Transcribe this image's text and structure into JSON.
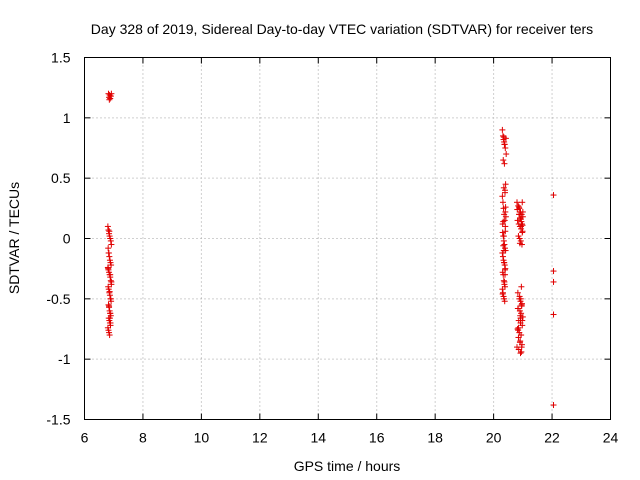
{
  "chart_data": {
    "type": "scatter",
    "title": "Day 328 of 2019, Sidereal Day-to-day VTEC variation (SDTVAR) for receiver ters",
    "xlabel": "GPS time / hours",
    "ylabel": "SDTVAR / TECUs",
    "xlim": [
      6,
      24
    ],
    "ylim": [
      -1.5,
      1.5
    ],
    "xticks": [
      6,
      8,
      10,
      12,
      14,
      16,
      18,
      20,
      22,
      24
    ],
    "yticks": [
      -1.5,
      -1,
      -0.5,
      0,
      0.5,
      1,
      1.5
    ],
    "xtick_labels": [
      "6",
      "8",
      "10",
      "12",
      "14",
      "16",
      "18",
      "20",
      "22",
      "24"
    ],
    "ytick_labels": [
      "-1.5",
      "-1",
      "-0.5",
      "0",
      "0.5",
      "1",
      "1.5"
    ],
    "grid": true,
    "marker": "+",
    "color": "#e00000",
    "series": [
      {
        "name": "ters",
        "x": [
          6.82,
          6.86,
          6.9,
          6.84,
          6.88,
          6.92,
          6.85,
          6.89,
          6.8,
          6.82,
          6.84,
          6.86,
          6.88,
          6.9,
          6.92,
          6.81,
          6.83,
          6.85,
          6.87,
          6.89,
          6.91,
          6.8,
          6.82,
          6.84,
          6.86,
          6.88,
          6.9,
          6.92,
          6.81,
          6.83,
          6.85,
          6.87,
          6.89,
          6.91,
          6.82,
          6.84,
          6.86,
          6.88,
          6.9,
          6.83,
          6.85,
          6.87,
          6.89,
          6.8,
          6.82,
          6.84,
          6.86,
          6.88,
          6.9,
          6.92,
          6.81,
          6.83,
          6.85,
          6.87,
          6.89,
          6.84,
          6.86,
          6.88,
          20.3,
          20.32,
          20.34,
          20.36,
          20.38,
          20.4,
          20.42,
          20.33,
          20.37,
          20.41,
          20.35,
          20.39,
          20.3,
          20.32,
          20.34,
          20.36,
          20.38,
          20.4,
          20.31,
          20.33,
          20.35,
          20.37,
          20.39,
          20.41,
          20.3,
          20.32,
          20.34,
          20.36,
          20.38,
          20.4,
          20.31,
          20.33,
          20.35,
          20.37,
          20.39,
          20.3,
          20.32,
          20.34,
          20.36,
          20.38,
          20.4,
          20.42,
          20.31,
          20.33,
          20.35,
          20.37,
          20.39,
          20.41,
          20.33,
          20.35,
          20.37,
          20.39,
          20.31,
          20.35,
          20.39,
          20.43,
          20.36,
          20.4,
          20.8,
          20.84,
          20.88,
          20.92,
          20.96,
          21.0,
          20.82,
          20.86,
          20.9,
          20.94,
          20.98,
          20.85,
          20.89,
          20.93,
          20.97,
          20.81,
          20.87,
          20.91,
          20.95,
          20.99,
          20.83,
          20.88,
          20.92,
          20.96,
          20.84,
          20.9,
          20.94,
          21.0,
          20.86,
          20.92,
          20.98,
          20.82,
          20.88,
          20.94,
          20.85,
          20.91,
          20.97,
          20.8,
          20.86,
          20.92,
          20.98,
          20.83,
          20.89,
          20.95,
          20.84,
          20.9,
          20.96,
          20.87,
          20.93,
          20.99,
          20.85,
          20.91,
          20.97,
          20.88,
          20.94,
          20.9,
          20.96,
          20.92,
          20.98,
          20.94,
          21.0,
          20.93,
          20.97,
          20.95,
          22.05,
          22.05,
          22.05,
          22.05,
          22.05
        ],
        "y": [
          1.2,
          1.19,
          1.18,
          1.17,
          1.16,
          1.2,
          1.15,
          1.18,
          0.1,
          0.07,
          0.04,
          0.02,
          0.0,
          -0.02,
          -0.05,
          -0.08,
          -0.12,
          -0.15,
          -0.18,
          -0.2,
          -0.22,
          -0.24,
          -0.26,
          -0.28,
          -0.3,
          -0.32,
          -0.35,
          -0.38,
          -0.4,
          -0.42,
          -0.45,
          -0.47,
          -0.5,
          -0.52,
          -0.55,
          -0.57,
          -0.6,
          -0.62,
          -0.64,
          -0.66,
          -0.68,
          -0.7,
          -0.72,
          -0.74,
          -0.76,
          -0.78,
          -0.8,
          -0.62,
          -0.5,
          -0.36,
          -0.25,
          -0.12,
          0.06,
          -0.66,
          -0.7,
          -0.56,
          -0.44,
          -0.3,
          0.9,
          0.85,
          0.82,
          0.8,
          0.78,
          0.75,
          0.83,
          0.65,
          0.62,
          0.45,
          0.42,
          0.38,
          0.35,
          0.3,
          0.25,
          0.2,
          0.15,
          0.1,
          0.05,
          0.02,
          -0.02,
          -0.05,
          -0.08,
          -0.1,
          -0.12,
          -0.15,
          -0.18,
          -0.2,
          -0.22,
          -0.25,
          -0.28,
          -0.3,
          -0.35,
          -0.38,
          -0.4,
          -0.42,
          -0.45,
          -0.48,
          -0.5,
          -0.52,
          0.22,
          0.18,
          0.12,
          -0.06,
          -0.1,
          -0.36,
          -0.26,
          0.26,
          0.14,
          0.84,
          0.78,
          0.4,
          -0.46,
          0.02,
          -0.3,
          0.7,
          -0.2,
          0.06,
          0.3,
          0.27,
          0.25,
          0.22,
          0.2,
          0.18,
          0.15,
          0.12,
          0.1,
          0.08,
          0.05,
          0.02,
          0.0,
          -0.02,
          -0.05,
          0.24,
          0.2,
          0.17,
          0.14,
          0.11,
          -0.45,
          -0.5,
          -0.52,
          -0.55,
          -0.58,
          -0.6,
          -0.62,
          -0.65,
          -0.68,
          -0.7,
          -0.72,
          -0.75,
          -0.78,
          -0.8,
          -0.82,
          -0.85,
          -0.88,
          -0.9,
          -0.92,
          -0.95,
          -0.68,
          -0.58,
          -0.48,
          -0.4,
          -0.76,
          -0.86,
          -0.56,
          0.26,
          0.16,
          0.06,
          -0.74,
          -0.64,
          -0.54,
          0.2,
          0.1,
          -0.04,
          -0.9,
          -0.66,
          0.3,
          -0.8,
          0.22,
          -0.5,
          0.12,
          -0.94,
          0.36,
          -0.27,
          -0.36,
          -0.63,
          -1.38
        ]
      }
    ]
  }
}
